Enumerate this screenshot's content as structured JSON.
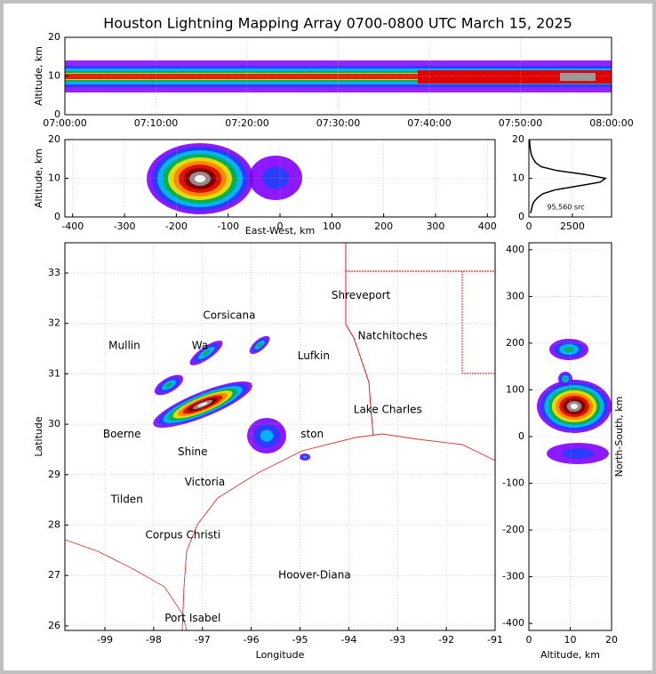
{
  "chart_data": [
    {
      "type": "density",
      "title": "Houston Lightning Mapping Array 0700-0800 UTC March 15, 2025",
      "ylabel": "Altitude, km",
      "categories": [
        "07:00:00",
        "07:10:00",
        "07:20:00",
        "07:30:00",
        "07:40:00",
        "07:50:00",
        "08:00:00"
      ],
      "ylim": [
        0,
        20
      ],
      "yticks": [
        0,
        10,
        20
      ],
      "grid": true
    },
    {
      "type": "density",
      "xlabel": "East-West, km",
      "ylabel": "Altitude, km",
      "xlim": [
        -415,
        415
      ],
      "xticks": [
        -400,
        -300,
        -200,
        -100,
        0,
        100,
        200,
        300,
        400
      ],
      "ylim": [
        0,
        20
      ],
      "yticks": [
        0,
        10,
        20
      ],
      "grid": true
    },
    {
      "type": "line",
      "annotation": "95,560 src",
      "color": "#000000",
      "altitudes": [
        1,
        2,
        3,
        4,
        5,
        6,
        7,
        8,
        9,
        10,
        11,
        12,
        13,
        14,
        15,
        16,
        17,
        18,
        19,
        20
      ],
      "values": [
        100,
        150,
        200,
        300,
        500,
        800,
        1500,
        2800,
        4100,
        4400,
        3200,
        1600,
        700,
        400,
        250,
        150,
        100,
        70,
        50,
        30
      ],
      "xlim": [
        0,
        4750
      ],
      "xticks": [
        0,
        2500
      ],
      "ylim": [
        0,
        20
      ],
      "yticks": [
        0,
        10,
        20
      ],
      "grid": true
    },
    {
      "type": "map",
      "xlabel": "Longitude",
      "ylabel": "Latitude",
      "xlim": [
        -99.82,
        -91
      ],
      "xticks": [
        -99,
        -98,
        -97,
        -96,
        -95,
        -94,
        -93,
        -92,
        -91
      ],
      "ylim": [
        25.91,
        33.6
      ],
      "yticks": [
        26,
        27,
        28,
        29,
        30,
        31,
        32,
        33
      ],
      "grid": true,
      "labels": [
        {
          "text": "Shreveport",
          "lon": -93.75,
          "lat": 32.55,
          "color": "#000000"
        },
        {
          "text": "Corsicana",
          "lon": -96.45,
          "lat": 32.15,
          "color": "#000000"
        },
        {
          "text": "Natchitoches",
          "lon": -93.1,
          "lat": 31.75,
          "color": "#000000"
        },
        {
          "text": "Mullin",
          "lon": -98.6,
          "lat": 31.55,
          "color": "#f08040"
        },
        {
          "text": "Wa",
          "lon": -97.05,
          "lat": 31.55,
          "color": "#000000"
        },
        {
          "text": "Lufkin",
          "lon": -94.72,
          "lat": 31.35,
          "color": "#000000"
        },
        {
          "text": "Lake Charles",
          "lon": -93.2,
          "lat": 30.28,
          "color": "#000000"
        },
        {
          "text": "ston",
          "lon": -94.75,
          "lat": 29.8,
          "color": "#f0a000"
        },
        {
          "text": "Boerne",
          "lon": -98.65,
          "lat": 29.8,
          "color": "#000000"
        },
        {
          "text": "Shine",
          "lon": -97.2,
          "lat": 29.45,
          "color": "#000000"
        },
        {
          "text": "Victoria",
          "lon": -96.95,
          "lat": 28.85,
          "color": "#000000"
        },
        {
          "text": "Tilden",
          "lon": -98.55,
          "lat": 28.5,
          "color": "#000000"
        },
        {
          "text": "Corpus Christi",
          "lon": -97.4,
          "lat": 27.8,
          "color": "#000000"
        },
        {
          "text": "Hoover-Diana",
          "lon": -94.7,
          "lat": 27.0,
          "color": "#1020e0"
        },
        {
          "text": "Port Isabel",
          "lon": -97.2,
          "lat": 26.15,
          "color": "#000000"
        }
      ]
    },
    {
      "type": "density",
      "xlabel": "Altitude, km",
      "ylabel": "North-South, km",
      "xlim": [
        0,
        20
      ],
      "xticks": [
        0,
        10,
        20
      ],
      "ylim": [
        -415,
        415
      ],
      "yticks": [
        -400,
        -300,
        -200,
        -100,
        0,
        100,
        200,
        300,
        400
      ],
      "grid": true
    }
  ]
}
